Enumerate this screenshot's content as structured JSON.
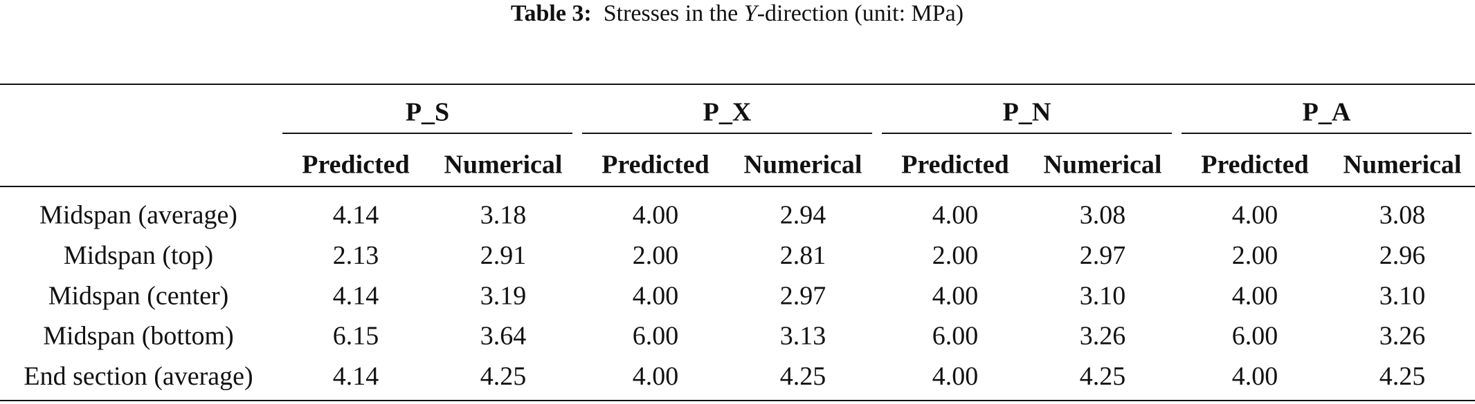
{
  "caption": {
    "label": "Table 3:",
    "text": [
      "Stresses in the ",
      "Y",
      "-direction (unit: MPa)"
    ]
  },
  "table": {
    "groups": [
      "P_S",
      "P_X",
      "P_N",
      "P_A"
    ],
    "subheaders": [
      "Predicted",
      "Numerical",
      "Predicted",
      "Numerical",
      "Predicted",
      "Numerical",
      "Predicted",
      "Numerical"
    ],
    "rows": [
      [
        "Midspan (average)",
        "4.14",
        "3.18",
        "4.00",
        "2.94",
        "4.00",
        "3.08",
        "4.00",
        "3.08"
      ],
      [
        "Midspan (top)",
        "2.13",
        "2.91",
        "2.00",
        "2.81",
        "2.00",
        "2.97",
        "2.00",
        "2.96"
      ],
      [
        "Midspan (center)",
        "4.14",
        "3.19",
        "4.00",
        "2.97",
        "4.00",
        "3.10",
        "4.00",
        "3.10"
      ],
      [
        "Midspan (bottom)",
        "6.15",
        "3.64",
        "6.00",
        "3.13",
        "6.00",
        "3.26",
        "6.00",
        "3.26"
      ],
      [
        "End section (average)",
        "4.14",
        "4.25",
        "4.00",
        "4.25",
        "4.00",
        "4.25",
        "4.00",
        "4.25"
      ]
    ]
  }
}
